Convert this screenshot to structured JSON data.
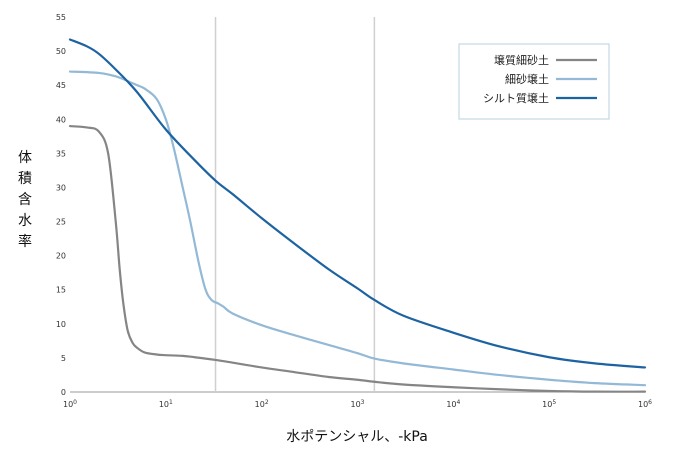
{
  "chart_data": {
    "type": "line",
    "title": "",
    "xlabel": "水ポテンシャル、-kPa",
    "ylabel": "体積含水率",
    "x_scale": "log",
    "xlim": [
      1,
      1000000
    ],
    "ylim": [
      0,
      55
    ],
    "grid": false,
    "legend_position": "top-right",
    "y_ticks": [
      "0",
      "5",
      "10",
      "15",
      "20",
      "25",
      "30",
      "35",
      "40",
      "45",
      "50",
      "55"
    ],
    "x_ticks": [
      {
        "base": "10",
        "exp": "0"
      },
      {
        "base": "10",
        "exp": "1"
      },
      {
        "base": "10",
        "exp": "2"
      },
      {
        "base": "10",
        "exp": "3"
      },
      {
        "base": "10",
        "exp": "4"
      },
      {
        "base": "10",
        "exp": "5"
      },
      {
        "base": "10",
        "exp": "6"
      }
    ],
    "reference_lines_x": [
      33,
      1500
    ],
    "series": [
      {
        "name": "壌質細砂土",
        "color": "#858585",
        "x": [
          1,
          1.5,
          2,
          2.5,
          3,
          3.3,
          3.6,
          4,
          4.5,
          5,
          6,
          8,
          10,
          15,
          20,
          33,
          50,
          100,
          200,
          500,
          1000,
          1500,
          3000,
          10000,
          30000,
          100000,
          300000,
          1000000
        ],
        "y": [
          39,
          38.8,
          38.2,
          35,
          25,
          18,
          13,
          9,
          7.2,
          6.5,
          5.8,
          5.5,
          5.4,
          5.3,
          5.1,
          4.7,
          4.3,
          3.6,
          3.0,
          2.2,
          1.8,
          1.5,
          1.1,
          0.7,
          0.4,
          0.15,
          0.05,
          0.05
        ]
      },
      {
        "name": "細砂壌土",
        "color": "#93b9d6",
        "x": [
          1,
          2,
          3,
          4,
          5,
          6,
          8,
          10,
          12,
          15,
          18,
          22,
          26,
          30,
          35,
          40,
          50,
          100,
          200,
          500,
          1000,
          1500,
          3000,
          10000,
          30000,
          100000,
          300000,
          1000000
        ],
        "y": [
          47,
          46.8,
          46.3,
          45.6,
          45,
          44.5,
          43,
          40,
          36,
          30,
          25,
          19,
          15,
          13.5,
          13,
          12.5,
          11.5,
          9.8,
          8.5,
          6.9,
          5.7,
          4.9,
          4.2,
          3.3,
          2.5,
          1.8,
          1.3,
          1.0
        ]
      },
      {
        "name": "シルト質壌土",
        "color": "#1d63a2",
        "x": [
          1,
          1.5,
          2,
          3,
          5,
          10,
          20,
          33,
          50,
          100,
          200,
          500,
          1000,
          1500,
          3000,
          10000,
          30000,
          100000,
          300000,
          1000000
        ],
        "y": [
          51.7,
          50.7,
          49.6,
          47.3,
          44,
          38.5,
          34,
          31,
          29,
          25.5,
          22.2,
          18,
          15.2,
          13.5,
          11.2,
          8.7,
          6.7,
          5.1,
          4.2,
          3.6
        ]
      }
    ]
  }
}
